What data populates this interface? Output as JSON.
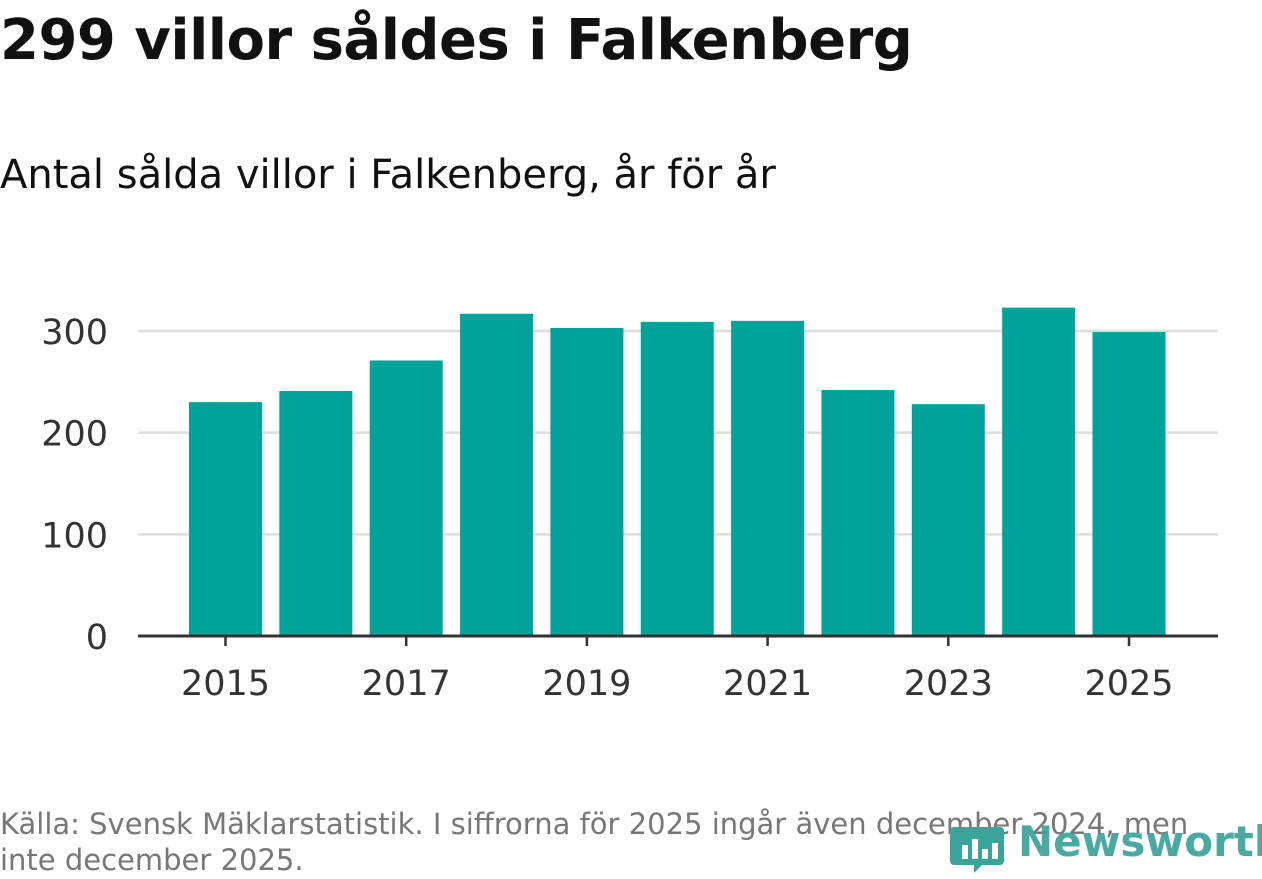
{
  "header": {
    "title": "299 villor såldes i Falkenberg",
    "subtitle": "Antal sålda villor i Falkenberg, år för år"
  },
  "footer": {
    "source": "Källa: Svensk Mäklarstatistik. I siffrorna för 2025 ingår även december 2024, men inte december 2025.",
    "brand": "Newsworthy"
  },
  "colors": {
    "bar": "#00a39a",
    "grid": "#dddddd",
    "axis": "#333333",
    "brand": "#3aa39a"
  },
  "chart_data": {
    "type": "bar",
    "title": "Antal sålda villor i Falkenberg, år för år",
    "xlabel": "",
    "ylabel": "",
    "categories": [
      "2015",
      "2016",
      "2017",
      "2018",
      "2019",
      "2020",
      "2021",
      "2022",
      "2023",
      "2024",
      "2025"
    ],
    "values": [
      230,
      241,
      271,
      317,
      303,
      309,
      310,
      242,
      228,
      323,
      299
    ],
    "x_tick_labels": [
      "2015",
      "2017",
      "2019",
      "2021",
      "2023",
      "2025"
    ],
    "y_ticks": [
      0,
      100,
      200,
      300
    ],
    "ylim": [
      0,
      335
    ],
    "grid": true
  }
}
